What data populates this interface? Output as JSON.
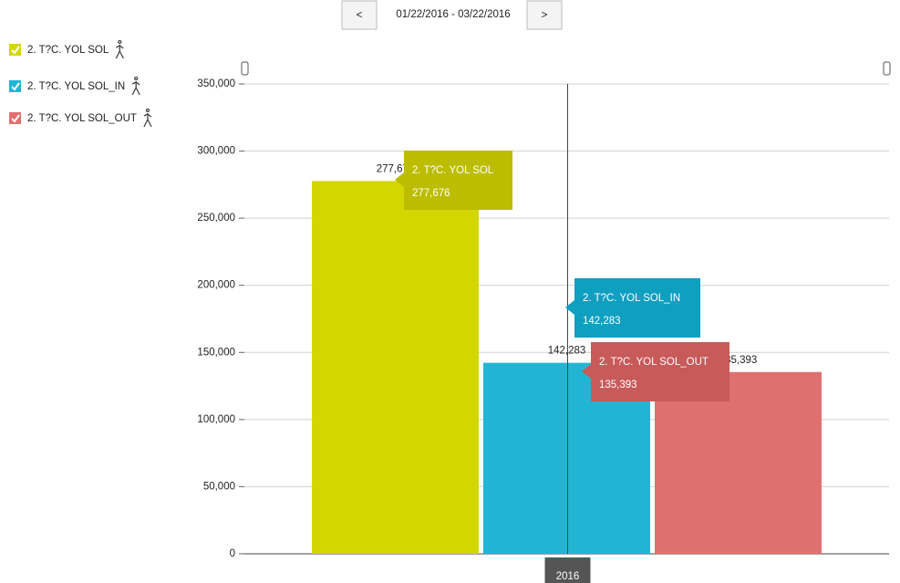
{
  "controls": {
    "prev": "<",
    "range": "01/22/2016 - 03/22/2016",
    "next": ">"
  },
  "chart_data": {
    "type": "bar",
    "categories": [
      "2016"
    ],
    "series": [
      {
        "name": "2. T?C. YOL SOL",
        "color": "#d4d600",
        "tooltip_color": "#bcbd00",
        "values": [
          277676
        ],
        "value_labels": [
          "277,676"
        ]
      },
      {
        "name": "2. T?C. YOL SOL_IN",
        "color": "#22b5d3",
        "tooltip_color": "#0f9fc0",
        "values": [
          142283
        ],
        "value_labels": [
          "142,283"
        ]
      },
      {
        "name": "2. T?C. YOL SOL_OUT",
        "color": "#e07070",
        "tooltip_color": "#c85a5a",
        "values": [
          135393
        ],
        "value_labels": [
          "135,393"
        ]
      }
    ],
    "ylim": [
      0,
      350000
    ],
    "yticks": [
      0,
      {
        "value": 50000,
        "label": "50,000"
      },
      {
        "value": 100000,
        "label": "100,000"
      },
      {
        "value": 150000,
        "label": "150,000"
      },
      {
        "value": 200000,
        "label": "200,000"
      },
      {
        "value": 250000,
        "label": "250,000"
      },
      {
        "value": 300000,
        "label": "300,000"
      },
      {
        "value": 350000,
        "label": "350,000"
      }
    ],
    "grid": true,
    "legend": "top-left"
  }
}
